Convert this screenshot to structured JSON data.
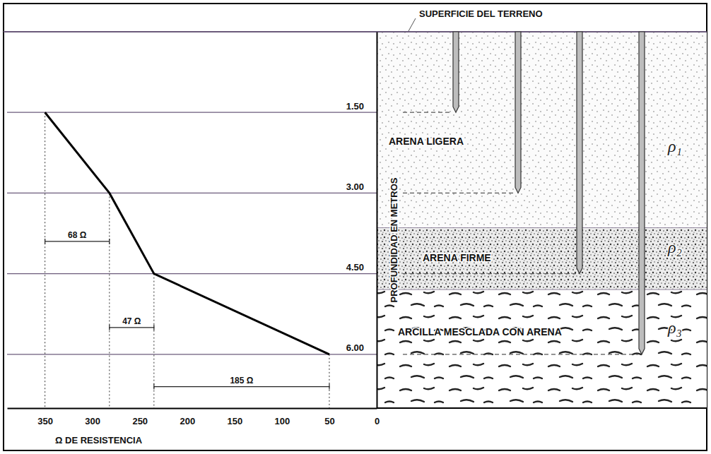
{
  "chart_data": {
    "type": "line",
    "x_label": "Ω DE RESISTENCIA",
    "y_label": "PROFUNDIDAD EN METROS",
    "x": [
      350,
      282,
      235,
      50
    ],
    "values": [
      1.5,
      3.0,
      4.5,
      6.0
    ],
    "color": "#000000",
    "xlim": [
      390,
      0
    ],
    "xticks": [
      350,
      300,
      250,
      200,
      150,
      100,
      50,
      0
    ],
    "ylim": [
      0,
      7
    ],
    "yticks": [
      {
        "value": 1.5,
        "label": "1.50"
      },
      {
        "value": 3.0,
        "label": "3.00"
      },
      {
        "value": 4.5,
        "label": "4.50"
      },
      {
        "value": 6.0,
        "label": "6.00"
      }
    ],
    "grid": true,
    "annotations": [
      "68 Ω",
      "47 Ω",
      "185 Ω"
    ]
  },
  "diagram": {
    "surface_label": "SUPERFICIE DEL TERRENO",
    "layers": [
      {
        "label": "ARENA LIGERA",
        "symbol": "ρ₁",
        "bottom": 3.65
      },
      {
        "label": "ARENA FIRME",
        "symbol": "ρ₂",
        "bottom": 4.8
      },
      {
        "label": "ARCILLA MESCLADA CON ARENA",
        "symbol": "ρ₃",
        "bottom": 7
      }
    ]
  }
}
